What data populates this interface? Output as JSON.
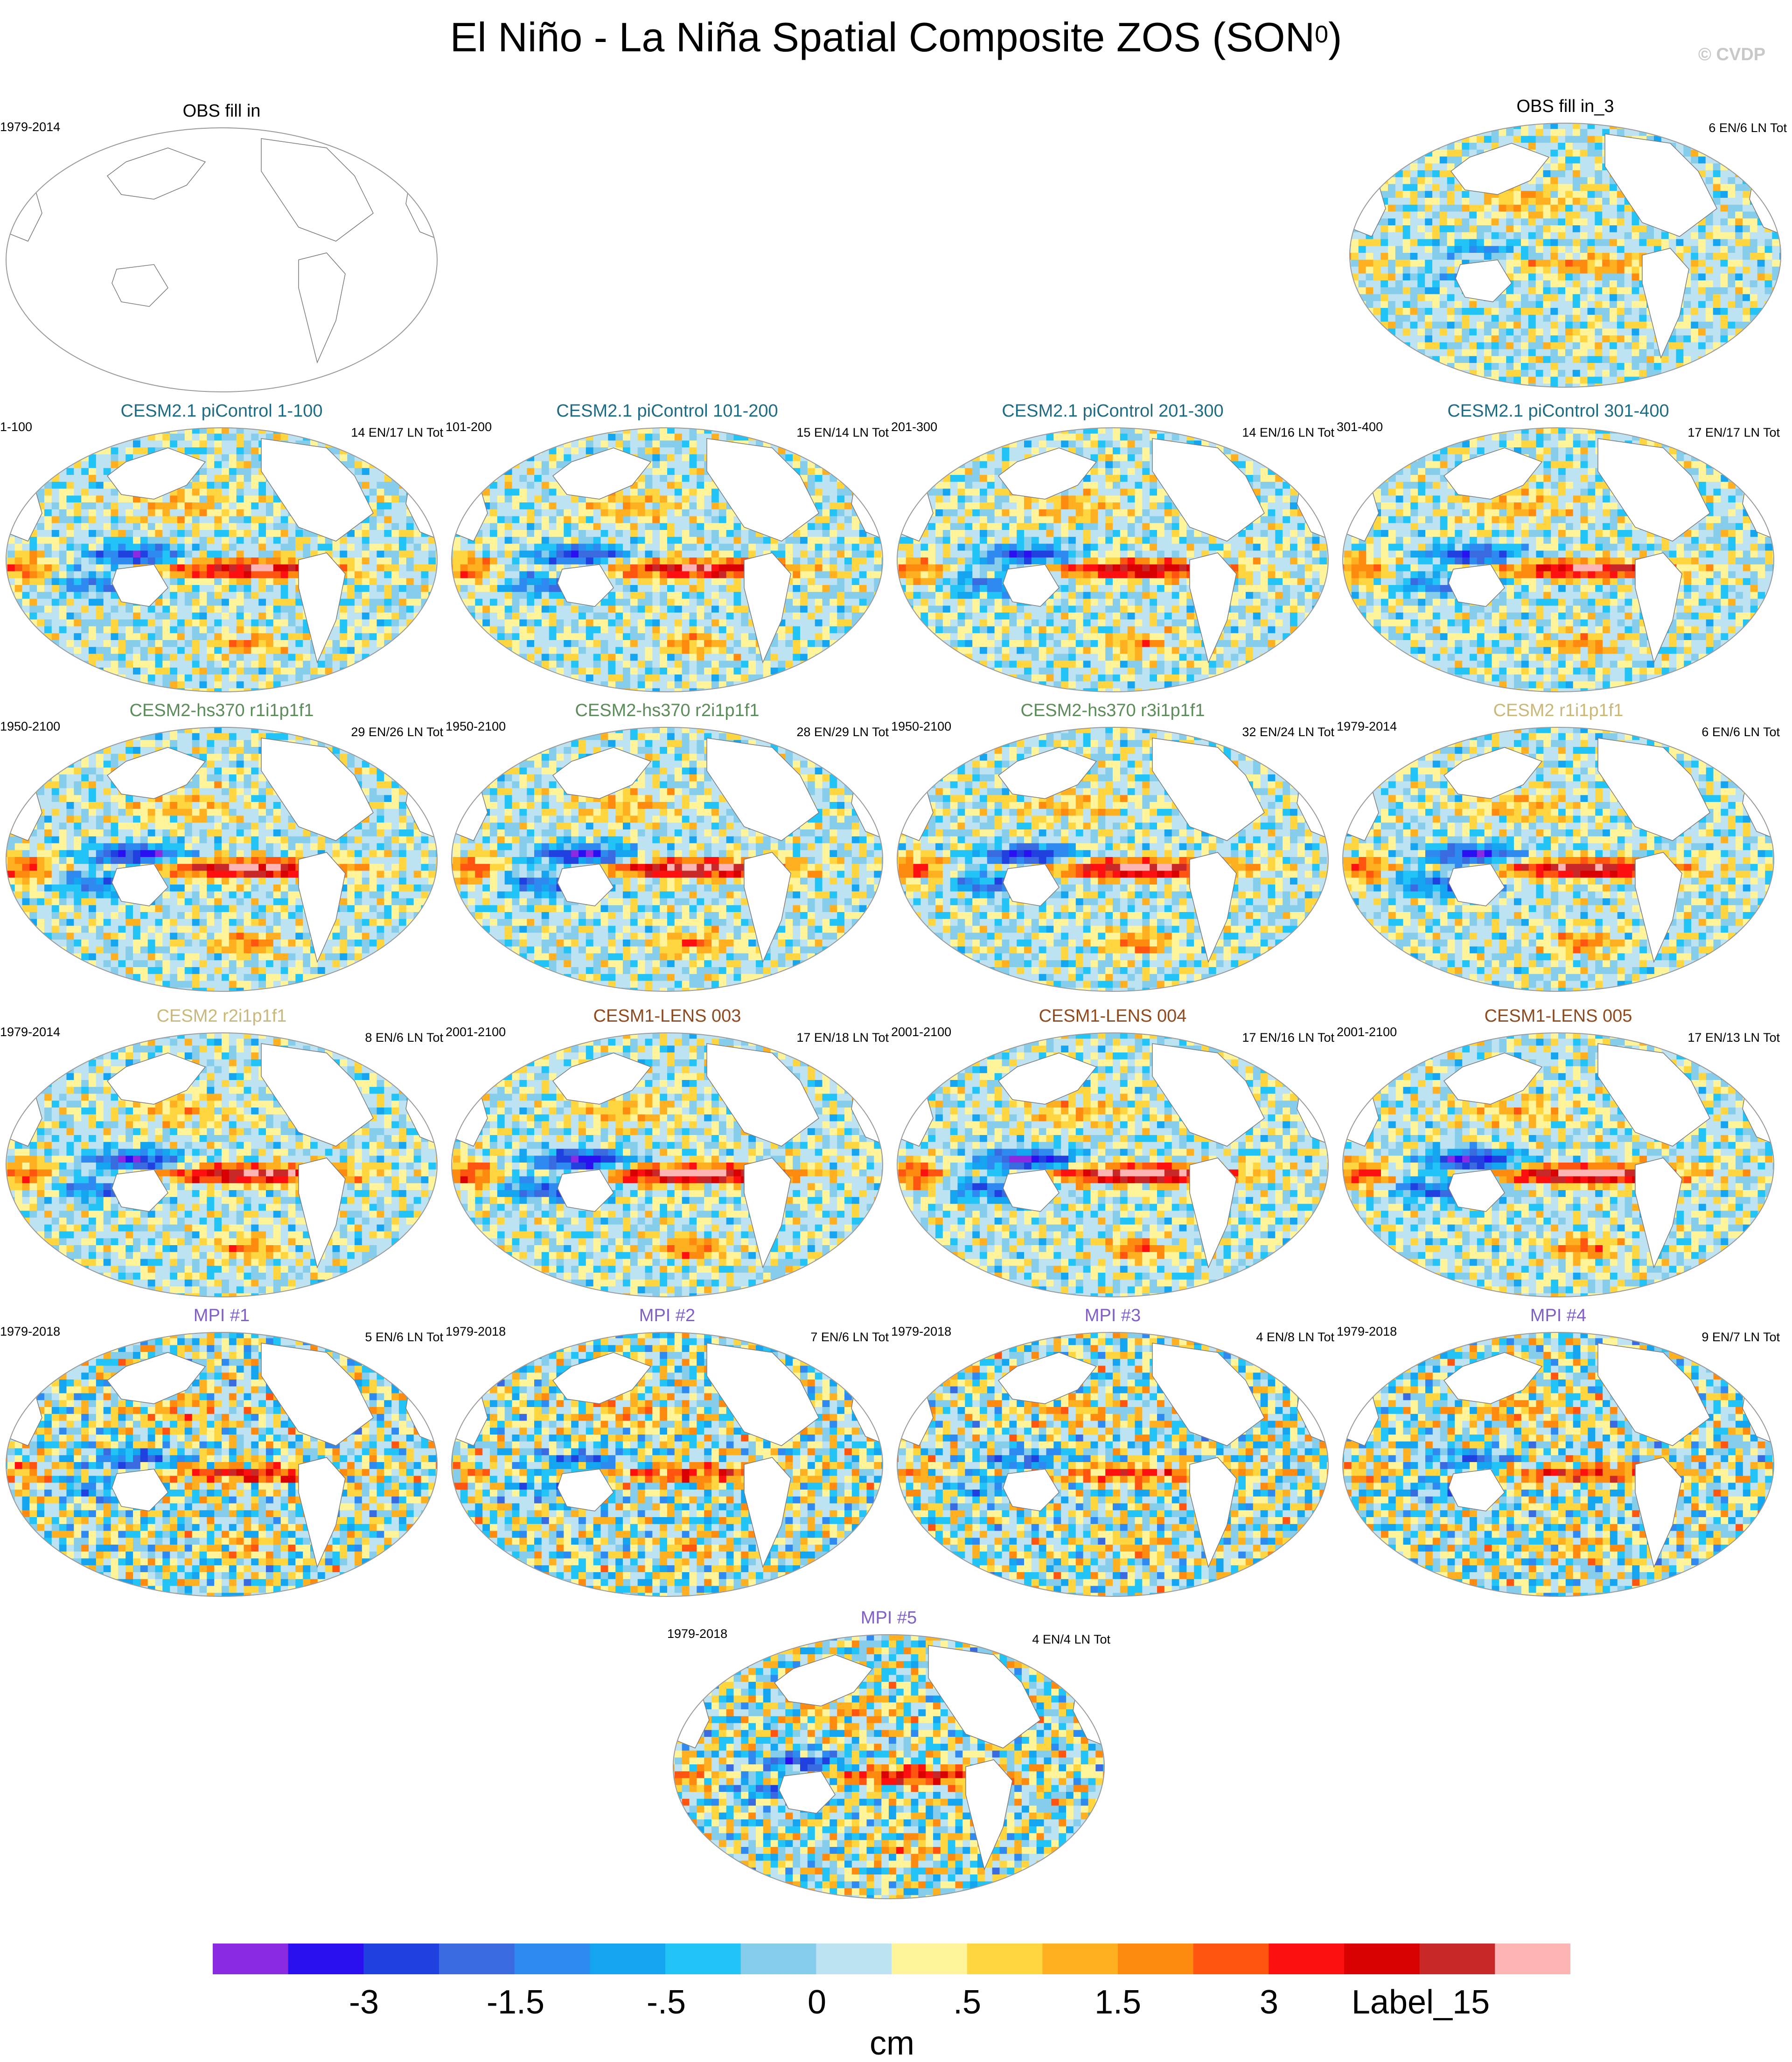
{
  "title": {
    "text": "El Niño - La Niña Spatial Composite ZOS (SON",
    "sup": "0",
    "close": ")"
  },
  "copyright": "© CVDP",
  "colors": {
    "title_teal": "#1f6b84",
    "title_green": "#5b8c5a",
    "title_khaki": "#c9b87a",
    "title_brown": "#8f4a1e",
    "title_purple": "#8060c8",
    "coast": "#7a7a7a"
  },
  "panels": [
    {
      "title": "OBS fill in",
      "period": "1979-2014",
      "count": "",
      "title_color": "#000000",
      "empty": true
    },
    {
      "title": "OBS fill in_3",
      "period": "",
      "count": "6 EN/6 LN Tot",
      "title_color": "#000000",
      "amp": 0.35
    },
    {
      "title": "CESM2.1 piControl 1-100",
      "period": "1-100",
      "count": "14 EN/17 LN Tot",
      "title_color": "#1f6b84",
      "amp": 0.9
    },
    {
      "title": "CESM2.1 piControl 101-200",
      "period": "101-200",
      "count": "15 EN/14 LN Tot",
      "title_color": "#1f6b84",
      "amp": 0.9
    },
    {
      "title": "CESM2.1 piControl 201-300",
      "period": "201-300",
      "count": "14 EN/16 LN Tot",
      "title_color": "#1f6b84",
      "amp": 0.9
    },
    {
      "title": "CESM2.1 piControl 301-400",
      "period": "301-400",
      "count": "17 EN/17 LN Tot",
      "title_color": "#1f6b84",
      "amp": 0.9
    },
    {
      "title": "CESM2-hs370 r1i1p1f1",
      "period": "1950-2100",
      "count": "29 EN/26 LN Tot",
      "title_color": "#5b8c5a",
      "amp": 1.05
    },
    {
      "title": "CESM2-hs370 r2i1p1f1",
      "period": "1950-2100",
      "count": "28 EN/29 LN Tot",
      "title_color": "#5b8c5a",
      "amp": 1.05
    },
    {
      "title": "CESM2-hs370 r3i1p1f1",
      "period": "1950-2100",
      "count": "32 EN/24 LN Tot",
      "title_color": "#5b8c5a",
      "amp": 1.05
    },
    {
      "title": "CESM2 r1i1p1f1",
      "period": "1979-2014",
      "count": "6 EN/6 LN Tot",
      "title_color": "#c9b87a",
      "amp": 1.0
    },
    {
      "title": "CESM2 r2i1p1f1",
      "period": "1979-2014",
      "count": "8 EN/6 LN Tot",
      "title_color": "#c9b87a",
      "amp": 1.0
    },
    {
      "title": "CESM1-LENS 003",
      "period": "2001-2100",
      "count": "17 EN/18 LN Tot",
      "title_color": "#8f4a1e",
      "amp": 1.15
    },
    {
      "title": "CESM1-LENS 004",
      "period": "2001-2100",
      "count": "17 EN/16 LN Tot",
      "title_color": "#8f4a1e",
      "amp": 1.15
    },
    {
      "title": "CESM1-LENS 005",
      "period": "2001-2100",
      "count": "17 EN/13 LN Tot",
      "title_color": "#8f4a1e",
      "amp": 1.15
    },
    {
      "title": "MPI #1",
      "period": "1979-2018",
      "count": "5 EN/6 LN Tot",
      "title_color": "#8060c8",
      "amp": 0.7
    },
    {
      "title": "MPI #2",
      "period": "1979-2018",
      "count": "7 EN/6 LN Tot",
      "title_color": "#8060c8",
      "amp": 0.6
    },
    {
      "title": "MPI #3",
      "period": "1979-2018",
      "count": "4 EN/8 LN Tot",
      "title_color": "#8060c8",
      "amp": 0.6
    },
    {
      "title": "MPI #4",
      "period": "1979-2018",
      "count": "9 EN/7 LN Tot",
      "title_color": "#8060c8",
      "amp": 0.6
    },
    {
      "title": "MPI #5",
      "period": "1979-2018",
      "count": "4 EN/4 LN Tot",
      "title_color": "#8060c8",
      "amp": 0.75
    }
  ],
  "chart_data": {
    "type": "heatmap",
    "title": "El Niño - La Niña Spatial Composite ZOS (SON0)",
    "panel_count": 19,
    "colorbar": {
      "units": "cm",
      "tick_labels": [
        "-3",
        "-1.5",
        "-.5",
        "0",
        ".5",
        "1.5",
        "3",
        "Label_15"
      ],
      "colors": [
        "#8a2be2",
        "#2a10f0",
        "#2040e0",
        "#3a6ae0",
        "#2e8af0",
        "#14a4f0",
        "#22c4f8",
        "#86cdec",
        "#bde2f2",
        "#fff49a",
        "#ffd640",
        "#ffb020",
        "#ff8a10",
        "#ff5510",
        "#ff1010",
        "#d80000",
        "#c82828",
        "#ffb4b4"
      ]
    }
  }
}
